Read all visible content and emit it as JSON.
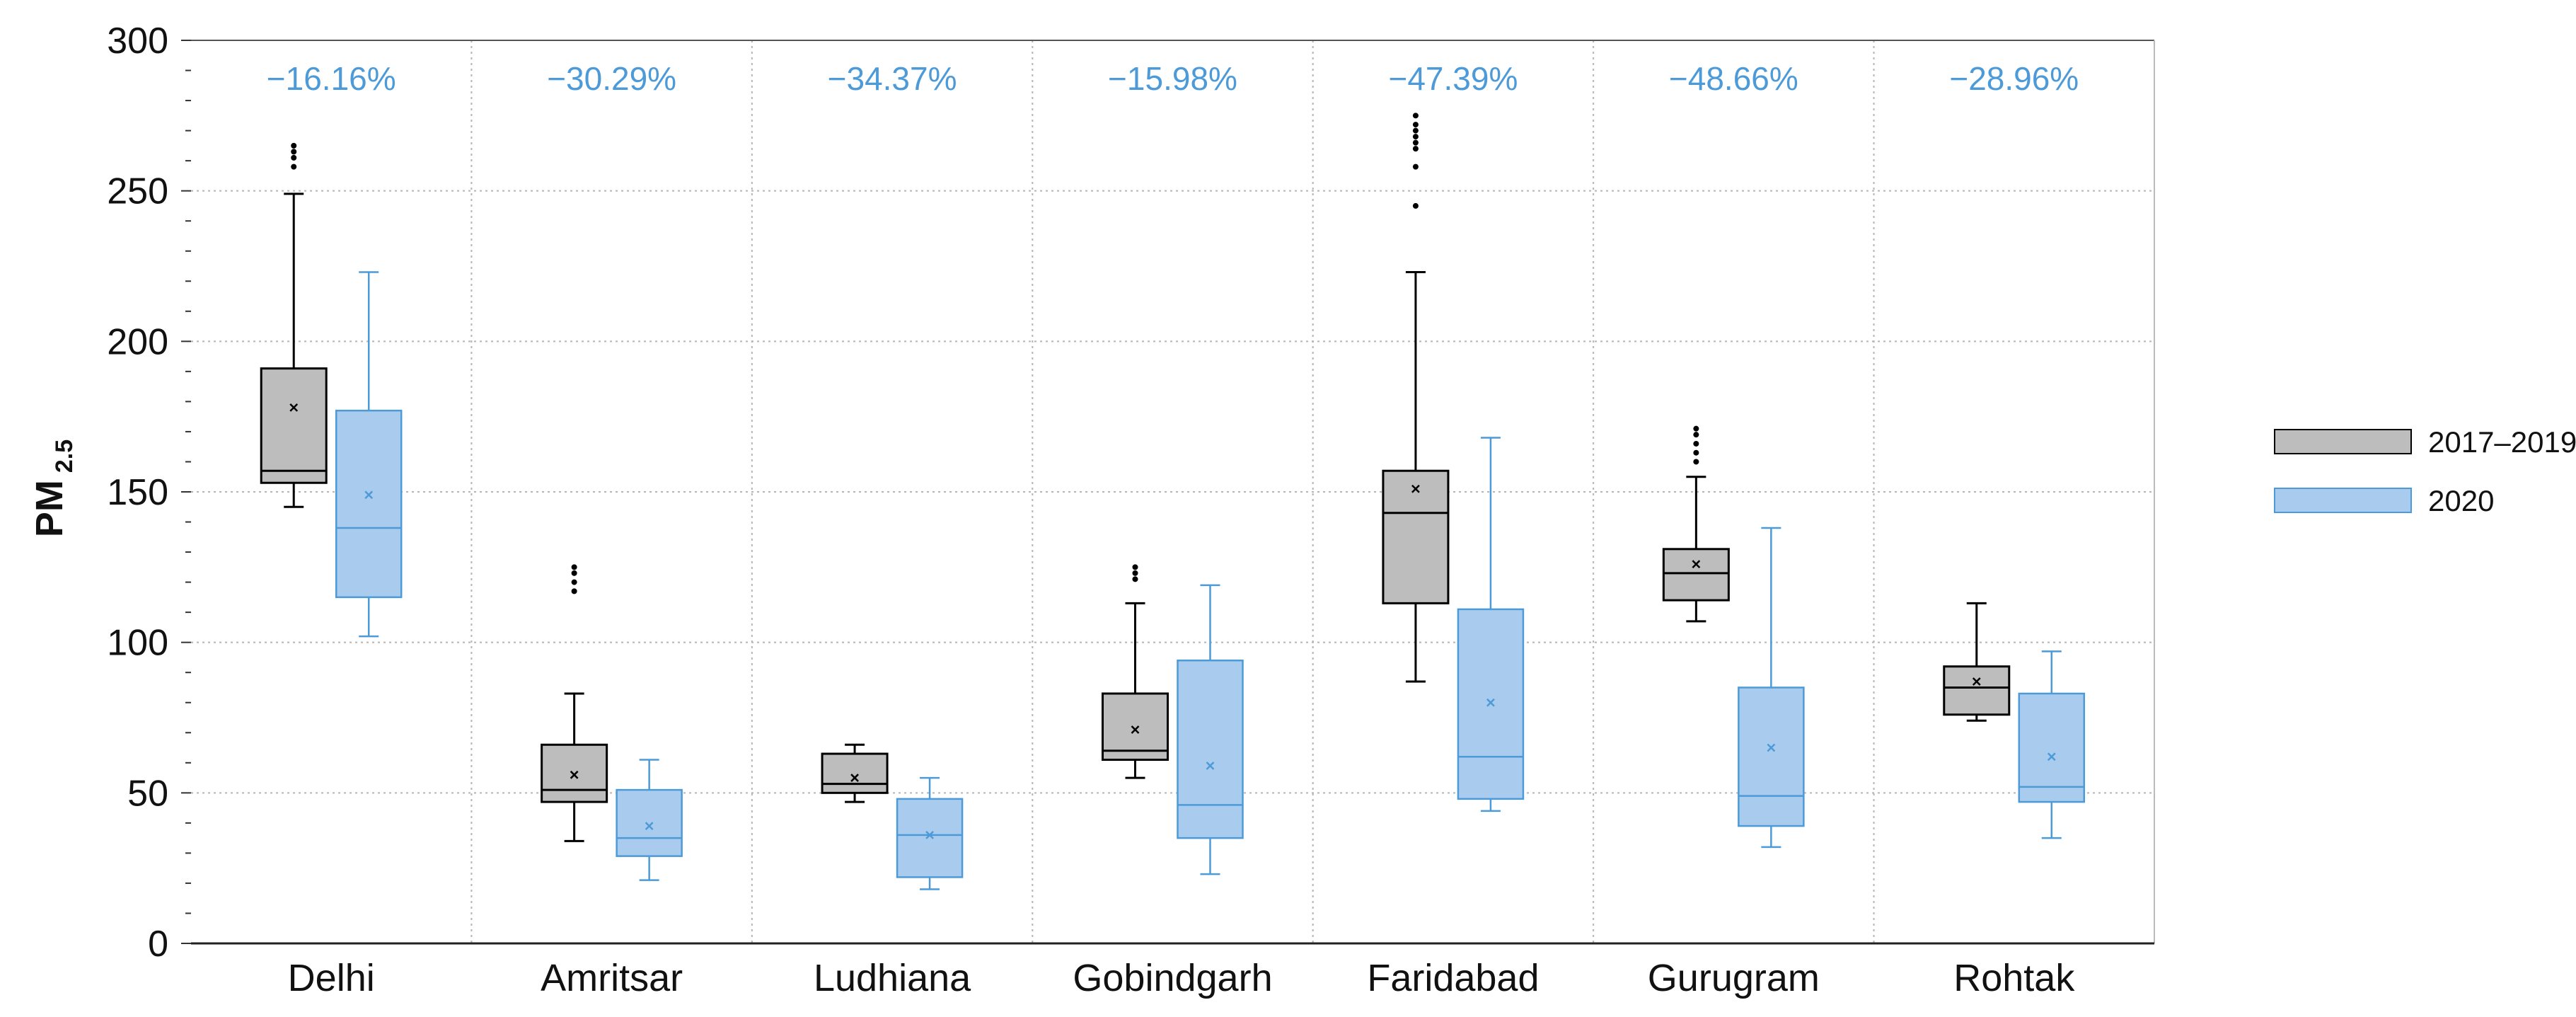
{
  "chart_data": {
    "type": "boxplot",
    "title": "",
    "xlabel": "",
    "ylabel": "PM",
    "ylabel_subscript": "2.5",
    "ylim": [
      0,
      300
    ],
    "yticks": [
      "0",
      "50",
      "100",
      "150",
      "200",
      "250",
      "300"
    ],
    "legend_position": "right",
    "series": [
      {
        "name": "2017–2019",
        "color": "#000000",
        "fill": "#bdbdbd"
      },
      {
        "name": "2020",
        "color": "#4d9ad8",
        "fill": "#a9cbee"
      }
    ],
    "categories": [
      {
        "name": "Delhi",
        "change": "−16.16%",
        "boxes": [
          {
            "min": 145,
            "q1": 153,
            "median": 157,
            "q3": 191,
            "max": 249,
            "mean": 178,
            "outliers": [
              258,
              261,
              263,
              265
            ]
          },
          {
            "min": 102,
            "q1": 115,
            "median": 138,
            "q3": 177,
            "max": 223,
            "mean": 149,
            "outliers": []
          }
        ]
      },
      {
        "name": "Amritsar",
        "change": "−30.29%",
        "boxes": [
          {
            "min": 34,
            "q1": 47,
            "median": 51,
            "q3": 66,
            "max": 83,
            "mean": 56,
            "outliers": [
              117,
              120,
              123,
              125
            ]
          },
          {
            "min": 21,
            "q1": 29,
            "median": 35,
            "q3": 51,
            "max": 61,
            "mean": 39,
            "outliers": []
          }
        ]
      },
      {
        "name": "Ludhiana",
        "change": "−34.37%",
        "boxes": [
          {
            "min": 47,
            "q1": 50,
            "median": 53,
            "q3": 63,
            "max": 66,
            "mean": 55,
            "outliers": []
          },
          {
            "min": 18,
            "q1": 22,
            "median": 36,
            "q3": 48,
            "max": 55,
            "mean": 36,
            "outliers": []
          }
        ]
      },
      {
        "name": "Gobindgarh",
        "change": "−15.98%",
        "boxes": [
          {
            "min": 55,
            "q1": 61,
            "median": 64,
            "q3": 83,
            "max": 113,
            "mean": 71,
            "outliers": [
              121,
              123,
              125
            ]
          },
          {
            "min": 23,
            "q1": 35,
            "median": 46,
            "q3": 94,
            "max": 119,
            "mean": 59,
            "outliers": []
          }
        ]
      },
      {
        "name": "Faridabad",
        "change": "−47.39%",
        "boxes": [
          {
            "min": 87,
            "q1": 113,
            "median": 143,
            "q3": 157,
            "max": 223,
            "mean": 151,
            "outliers": [
              245,
              258,
              264,
              266,
              268,
              270,
              272,
              275
            ]
          },
          {
            "min": 44,
            "q1": 48,
            "median": 62,
            "q3": 111,
            "max": 168,
            "mean": 80,
            "outliers": []
          }
        ]
      },
      {
        "name": "Gurugram",
        "change": "−48.66%",
        "boxes": [
          {
            "min": 107,
            "q1": 114,
            "median": 123,
            "q3": 131,
            "max": 155,
            "mean": 126,
            "outliers": [
              160,
              163,
              166,
              169,
              171
            ]
          },
          {
            "min": 32,
            "q1": 39,
            "median": 49,
            "q3": 85,
            "max": 138,
            "mean": 65,
            "outliers": []
          }
        ]
      },
      {
        "name": "Rohtak",
        "change": "−28.96%",
        "boxes": [
          {
            "min": 74,
            "q1": 76,
            "median": 85,
            "q3": 92,
            "max": 113,
            "mean": 87,
            "outliers": []
          },
          {
            "min": 35,
            "q1": 47,
            "median": 52,
            "q3": 83,
            "max": 97,
            "mean": 62,
            "outliers": []
          }
        ]
      }
    ]
  }
}
